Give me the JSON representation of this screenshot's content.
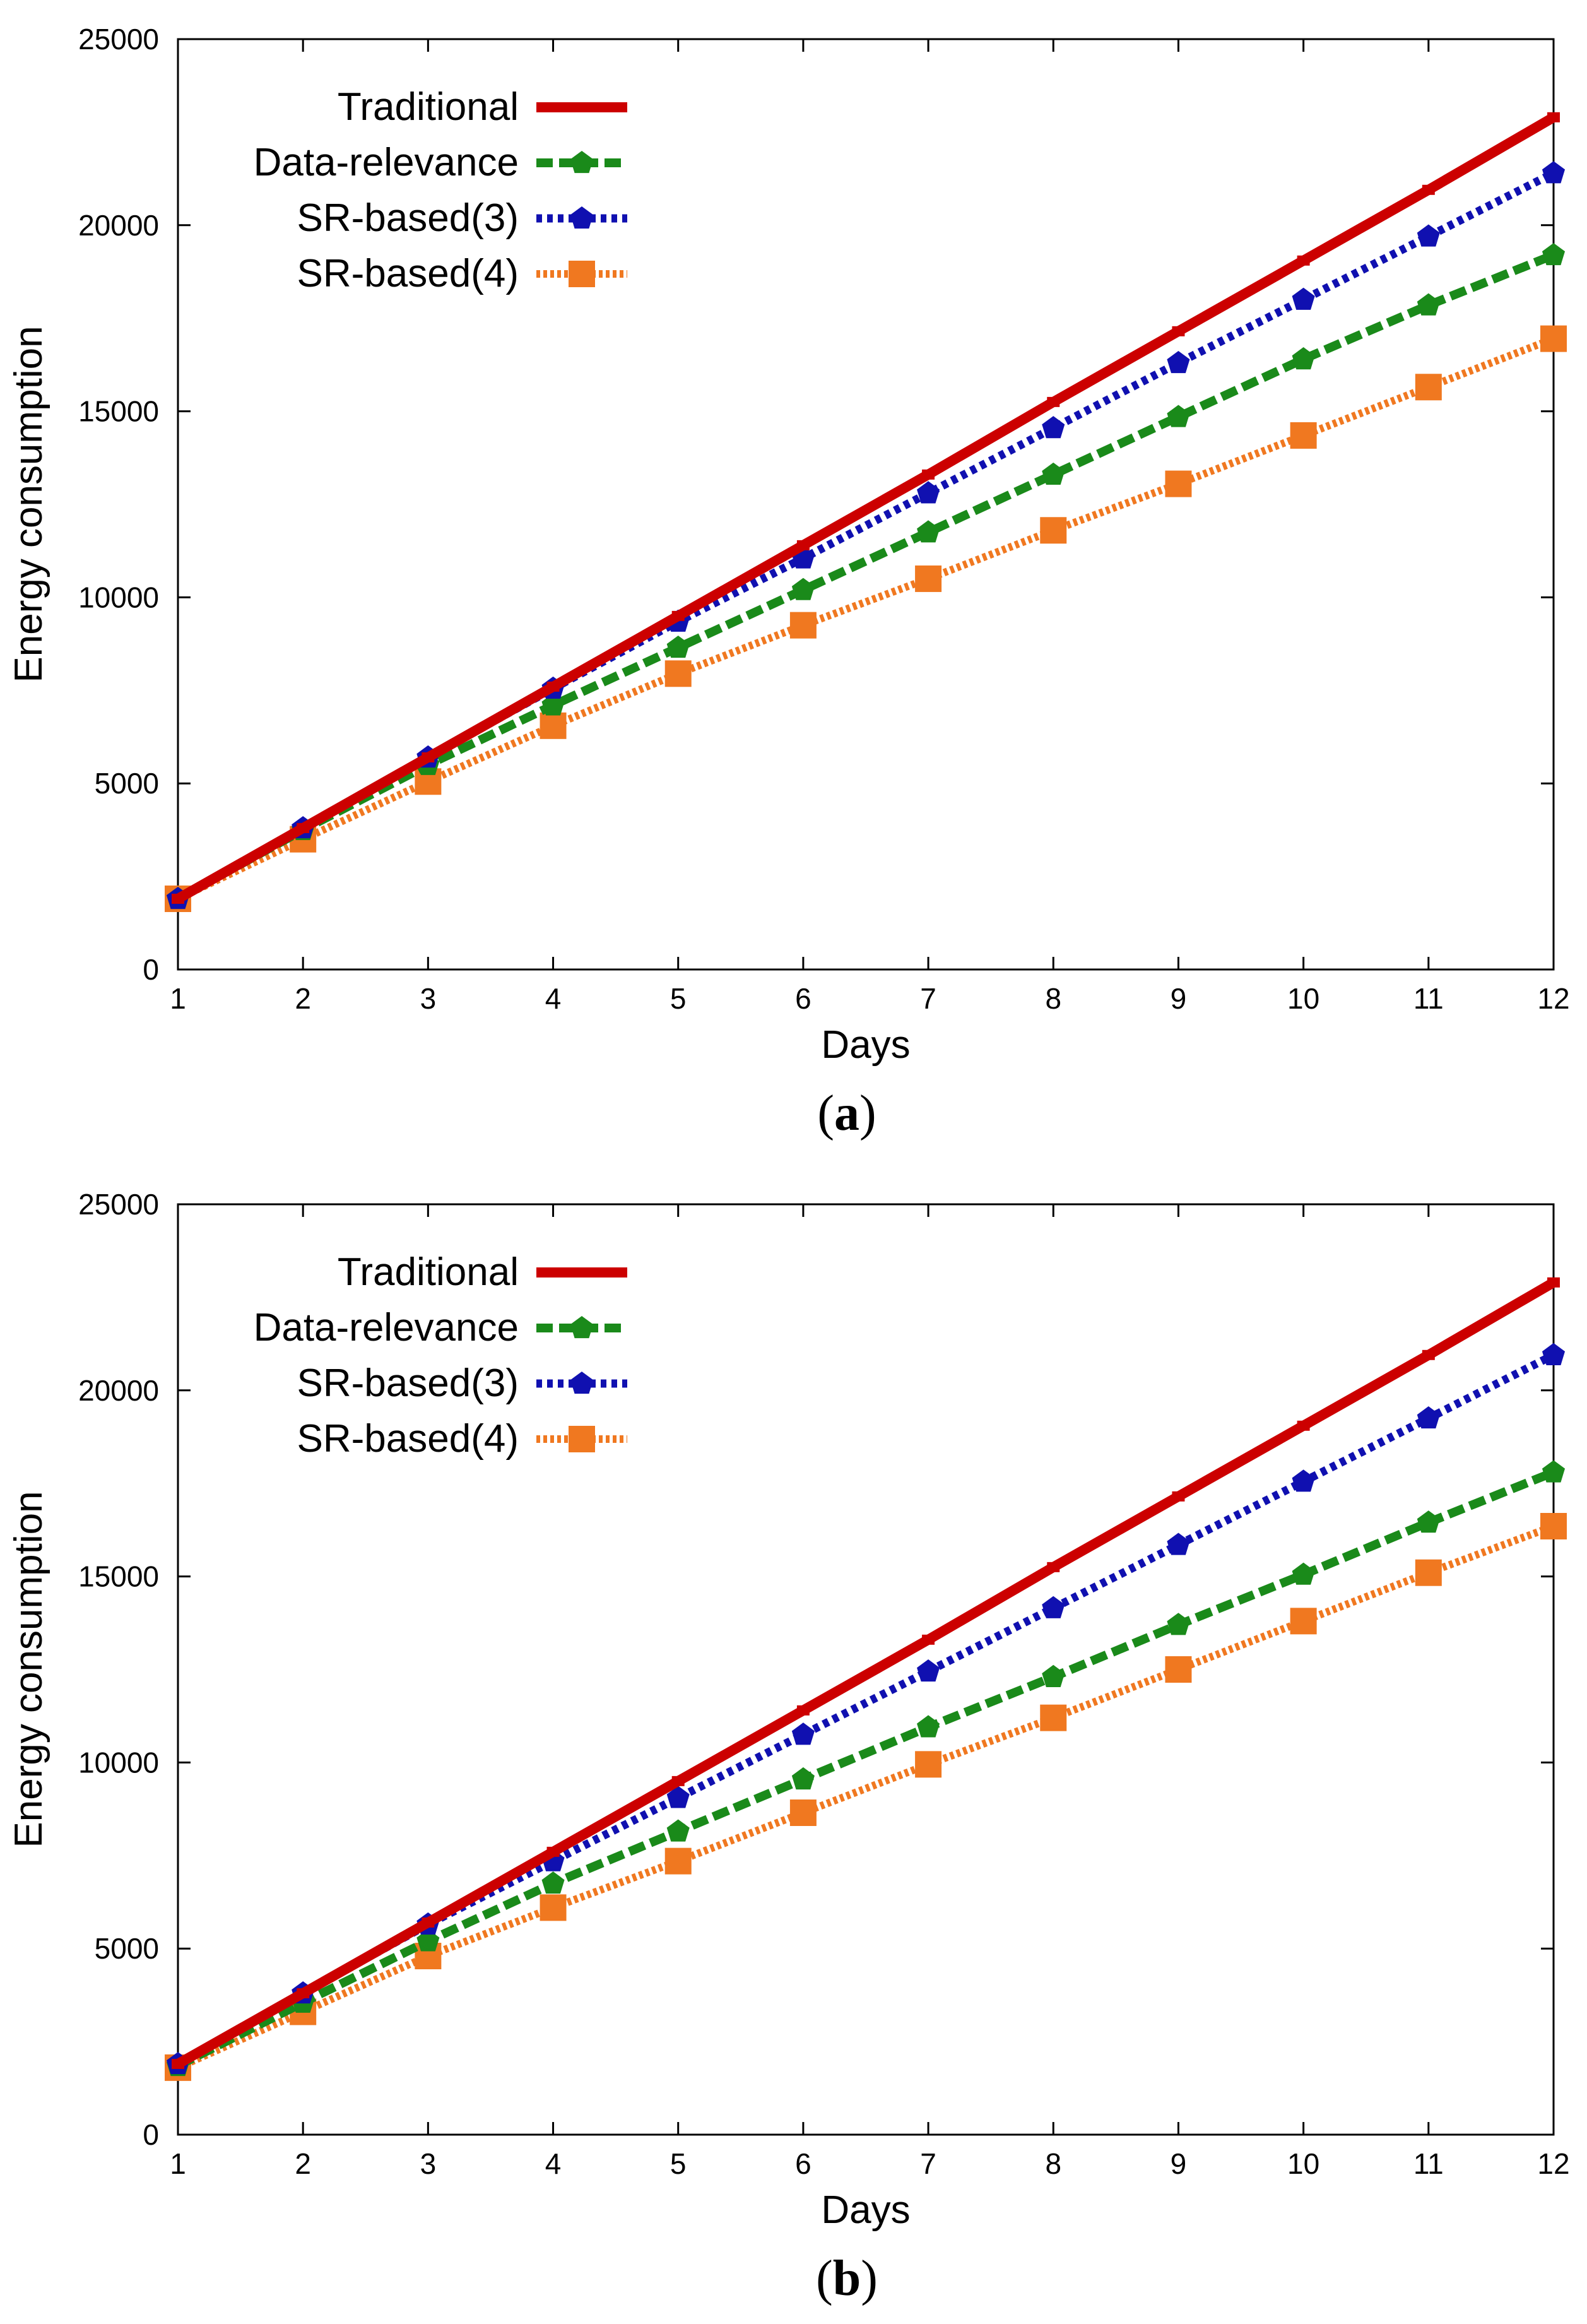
{
  "chart_data": [
    {
      "type": "line",
      "panel_label": "a",
      "x": [
        1,
        2,
        3,
        4,
        5,
        6,
        7,
        8,
        9,
        10,
        11,
        12
      ],
      "xlabel": "Days",
      "ylabel": "Energy consumption",
      "xlim": [
        1,
        12
      ],
      "ylim": [
        0,
        25000
      ],
      "xticks": [
        "1",
        "2",
        "3",
        "4",
        "5",
        "6",
        "7",
        "8",
        "9",
        "10",
        "11",
        "12"
      ],
      "yticks": [
        "0",
        "5000",
        "10000",
        "15000",
        "20000",
        "25000"
      ],
      "grid": false,
      "legend_position": "top-left",
      "series": [
        {
          "name": "Traditional",
          "color": "#cc0000",
          "style": "solid",
          "marker": "square-small",
          "values": [
            1900,
            3800,
            5700,
            7600,
            9500,
            11400,
            13300,
            15250,
            17150,
            19050,
            20950,
            22900
          ]
        },
        {
          "name": "Data-relevance",
          "color": "#1a8a1a",
          "style": "dashed",
          "marker": "diamond",
          "values": [
            1900,
            3750,
            5500,
            7100,
            8650,
            10200,
            11750,
            13300,
            14850,
            16400,
            17850,
            19200
          ]
        },
        {
          "name": "SR-based(3)",
          "color": "#1010b0",
          "style": "dotted",
          "marker": "diamond",
          "values": [
            1900,
            3800,
            5700,
            7550,
            9350,
            11050,
            12800,
            14550,
            16300,
            18000,
            19700,
            21400
          ]
        },
        {
          "name": "SR-based(4)",
          "color": "#f07820",
          "style": "dotted-thick",
          "marker": "square",
          "values": [
            1900,
            3500,
            5050,
            6550,
            7950,
            9250,
            10500,
            11800,
            13050,
            14350,
            15650,
            16950
          ]
        }
      ]
    },
    {
      "type": "line",
      "panel_label": "b",
      "x": [
        1,
        2,
        3,
        4,
        5,
        6,
        7,
        8,
        9,
        10,
        11,
        12
      ],
      "xlabel": "Days",
      "ylabel": "Energy consumption",
      "xlim": [
        1,
        12
      ],
      "ylim": [
        0,
        25000
      ],
      "xticks": [
        "1",
        "2",
        "3",
        "4",
        "5",
        "6",
        "7",
        "8",
        "9",
        "10",
        "11",
        "12"
      ],
      "yticks": [
        "0",
        "5000",
        "10000",
        "15000",
        "20000",
        "25000"
      ],
      "grid": false,
      "legend_position": "top-left",
      "series": [
        {
          "name": "Traditional",
          "color": "#cc0000",
          "style": "solid",
          "marker": "square-small",
          "values": [
            1900,
            3800,
            5700,
            7600,
            9500,
            11400,
            13300,
            15250,
            17150,
            19050,
            20950,
            22900
          ]
        },
        {
          "name": "Data-relevance",
          "color": "#1a8a1a",
          "style": "dashed",
          "marker": "diamond",
          "values": [
            1850,
            3550,
            5200,
            6750,
            8150,
            9550,
            10950,
            12300,
            13700,
            15050,
            16450,
            17800
          ]
        },
        {
          "name": "SR-based(3)",
          "color": "#1010b0",
          "style": "dotted",
          "marker": "diamond",
          "values": [
            1900,
            3800,
            5650,
            7350,
            9050,
            10750,
            12450,
            14150,
            15850,
            17550,
            19250,
            20950
          ]
        },
        {
          "name": "SR-based(4)",
          "color": "#f07820",
          "style": "dotted-thick",
          "marker": "square",
          "values": [
            1800,
            3300,
            4800,
            6100,
            7350,
            8650,
            9950,
            11200,
            12500,
            13800,
            15100,
            16350
          ]
        }
      ]
    }
  ]
}
